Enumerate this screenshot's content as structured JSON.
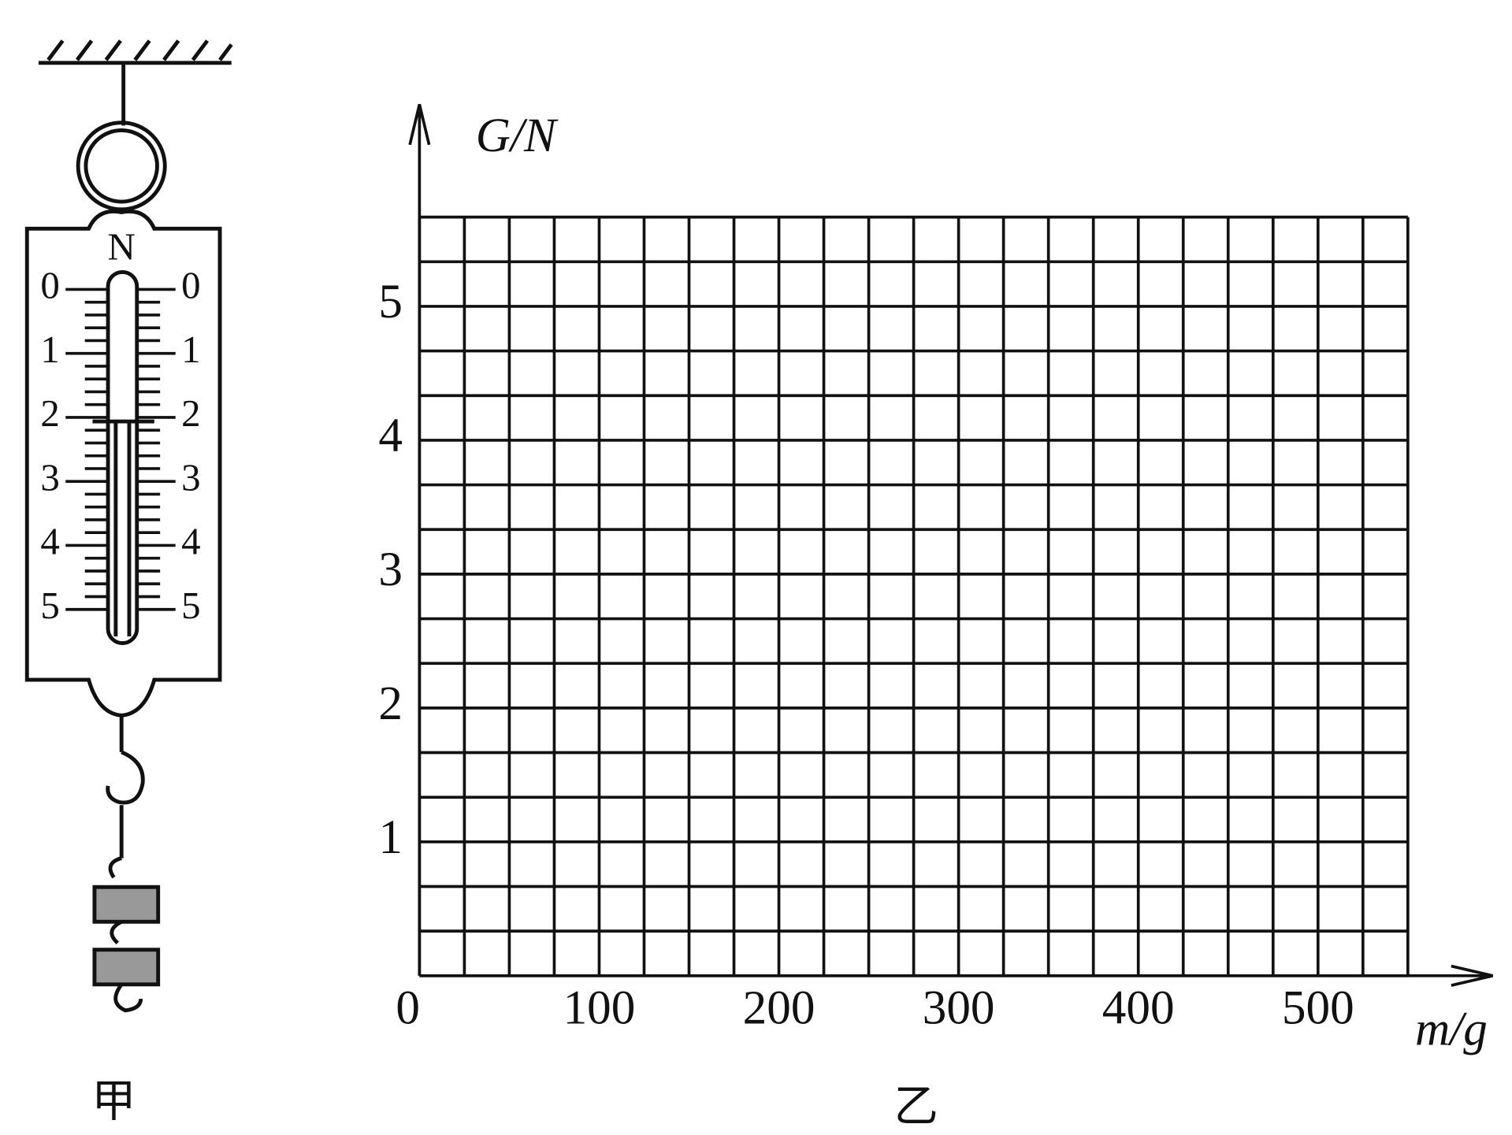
{
  "spring_scale": {
    "unit": "N",
    "left_scale": [
      "0",
      "1",
      "2",
      "3",
      "4",
      "5"
    ],
    "right_scale": [
      "0",
      "1",
      "2",
      "3",
      "4",
      "5"
    ],
    "caption": "甲"
  },
  "graph": {
    "y_axis_label": "G/N",
    "x_axis_label": "m/g",
    "x_ticks": [
      "0",
      "100",
      "200",
      "300",
      "400",
      "500"
    ],
    "y_ticks": [
      "1",
      "2",
      "3",
      "4",
      "5"
    ],
    "caption": "乙"
  }
}
